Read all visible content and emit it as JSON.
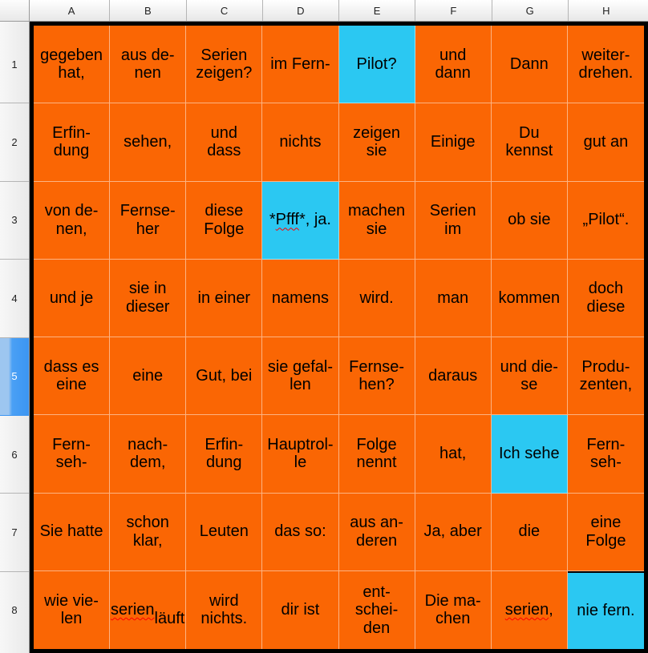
{
  "app": {
    "type": "spreadsheet-grid"
  },
  "colors": {
    "cell_orange": "#FA6604",
    "cell_cyan": "#2BC8F2",
    "range_border": "#000000",
    "selected_header_blue": "#3B95F2",
    "squiggle_red": "#FF0000"
  },
  "column_headers": [
    "A",
    "B",
    "C",
    "D",
    "E",
    "F",
    "G",
    "H"
  ],
  "row_headers": [
    "1",
    "2",
    "3",
    "4",
    "5",
    "6",
    "7",
    "8"
  ],
  "selected_row_header": "5",
  "grid": {
    "rows": [
      [
        {
          "text": "gegeben\nhat,"
        },
        {
          "text": "aus de-\nnen"
        },
        {
          "text": "Serien\nzeigen?"
        },
        {
          "text": "im Fern-"
        },
        {
          "text": "Pilot?",
          "color": "cyan"
        },
        {
          "text": "und\ndann"
        },
        {
          "text": "Dann"
        },
        {
          "text": "weiter-\ndrehen."
        }
      ],
      [
        {
          "text": "Erfin-\ndung"
        },
        {
          "text": "sehen,"
        },
        {
          "text": "und\ndass"
        },
        {
          "text": "nichts"
        },
        {
          "text": "zeigen\nsie"
        },
        {
          "text": "Einige"
        },
        {
          "text": "Du\nkennst"
        },
        {
          "text": "gut an"
        }
      ],
      [
        {
          "text": "von de-\nnen,"
        },
        {
          "text": "Fernse-\nher"
        },
        {
          "text": "diese\nFolge"
        },
        {
          "text": "*Pfff*, ja.",
          "color": "cyan",
          "misspelled": "Pfff"
        },
        {
          "text": "machen\nsie"
        },
        {
          "text": "Serien\nim"
        },
        {
          "text": "ob sie"
        },
        {
          "text": "„Pilot“."
        }
      ],
      [
        {
          "text": "und je"
        },
        {
          "text": "sie in\ndieser"
        },
        {
          "text": "in einer"
        },
        {
          "text": "namens"
        },
        {
          "text": "wird."
        },
        {
          "text": "man"
        },
        {
          "text": "kommen"
        },
        {
          "text": "doch\ndiese"
        }
      ],
      [
        {
          "text": "dass es\neine"
        },
        {
          "text": "eine"
        },
        {
          "text": "Gut, bei"
        },
        {
          "text": "sie gefal-\nlen"
        },
        {
          "text": "Fernse-\nhen?"
        },
        {
          "text": "daraus"
        },
        {
          "text": "und die-\nse"
        },
        {
          "text": "Produ-\nzenten,"
        }
      ],
      [
        {
          "text": "Fern-\nseh-"
        },
        {
          "text": "nach-\ndem,"
        },
        {
          "text": "Erfin-\ndung"
        },
        {
          "text": "Hauptrol-\nle"
        },
        {
          "text": "Folge\nnennt"
        },
        {
          "text": "hat,"
        },
        {
          "text": "Ich sehe",
          "color": "cyan"
        },
        {
          "text": "Fern-\nseh-"
        }
      ],
      [
        {
          "text": "Sie hatte"
        },
        {
          "text": "schon\nklar,"
        },
        {
          "text": "Leuten"
        },
        {
          "text": "das so:"
        },
        {
          "text": "aus an-\nderen"
        },
        {
          "text": "Ja, aber"
        },
        {
          "text": "die"
        },
        {
          "text": "eine\nFolge"
        }
      ],
      [
        {
          "text": "wie vie-\nlen"
        },
        {
          "text": "serien\nläuft",
          "misspelled": "serien"
        },
        {
          "text": "wird\nnichts."
        },
        {
          "text": "dir ist"
        },
        {
          "text": "ent-\nschei-\nden"
        },
        {
          "text": "Die ma-\nchen"
        },
        {
          "text": "serien,",
          "misspelled": "serien"
        },
        {
          "text": "nie fern.",
          "color": "cyan",
          "top_border": true
        }
      ]
    ]
  }
}
